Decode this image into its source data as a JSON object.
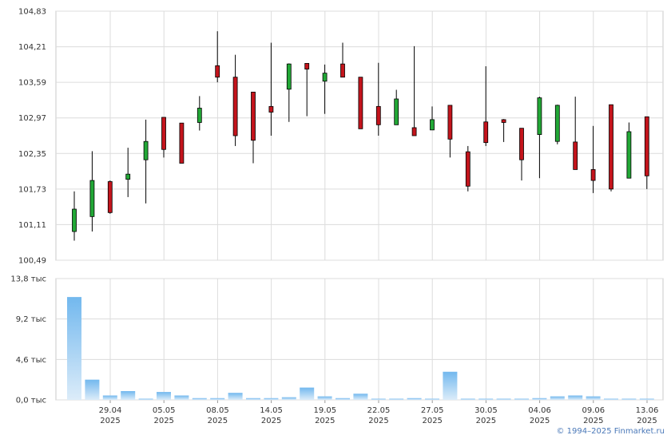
{
  "copyright": "© 1994–2025 Finmarket.ru",
  "colors": {
    "up": "#22a836",
    "down": "#c4141c",
    "volume_top": "#72b8ee",
    "volume_bottom": "#dcecf9",
    "grid": "#dcdcdc"
  },
  "chart_data": [
    {
      "type": "candlestick",
      "title": "",
      "ylim": [
        100.49,
        104.83
      ],
      "y_ticks": [
        "104,83",
        "104,21",
        "103,59",
        "102,97",
        "102,35",
        "101,73",
        "101,11",
        "100,49"
      ],
      "grid": true,
      "candles": [
        {
          "o": 100.99,
          "h": 101.69,
          "l": 100.83,
          "c": 101.38
        },
        {
          "o": 101.25,
          "h": 102.39,
          "l": 100.99,
          "c": 101.88
        },
        {
          "o": 101.86,
          "h": 101.88,
          "l": 101.3,
          "c": 101.32
        },
        {
          "o": 101.9,
          "h": 102.45,
          "l": 101.59,
          "c": 101.99
        },
        {
          "o": 102.24,
          "h": 102.94,
          "l": 101.48,
          "c": 102.56
        },
        {
          "o": 102.98,
          "h": 102.98,
          "l": 102.28,
          "c": 102.42
        },
        {
          "o": 102.88,
          "h": 102.88,
          "l": 102.18,
          "c": 102.18
        },
        {
          "o": 102.89,
          "h": 103.35,
          "l": 102.75,
          "c": 103.14
        },
        {
          "o": 103.88,
          "h": 104.48,
          "l": 103.59,
          "c": 103.68
        },
        {
          "o": 103.68,
          "h": 104.07,
          "l": 102.48,
          "c": 102.66
        },
        {
          "o": 103.42,
          "h": 103.42,
          "l": 102.18,
          "c": 102.58
        },
        {
          "o": 103.17,
          "h": 104.28,
          "l": 102.66,
          "c": 103.07
        },
        {
          "o": 103.47,
          "h": 103.92,
          "l": 102.9,
          "c": 103.91
        },
        {
          "o": 103.92,
          "h": 103.92,
          "l": 103.0,
          "c": 103.82
        },
        {
          "o": 103.61,
          "h": 103.9,
          "l": 103.04,
          "c": 103.75
        },
        {
          "o": 103.91,
          "h": 104.28,
          "l": 103.68,
          "c": 103.68
        },
        {
          "o": 103.68,
          "h": 103.68,
          "l": 102.78,
          "c": 102.78
        },
        {
          "o": 103.17,
          "h": 103.93,
          "l": 102.66,
          "c": 102.85
        },
        {
          "o": 102.85,
          "h": 103.46,
          "l": 102.85,
          "c": 103.3
        },
        {
          "o": 102.8,
          "h": 104.22,
          "l": 102.66,
          "c": 102.66
        },
        {
          "o": 102.76,
          "h": 103.17,
          "l": 102.76,
          "c": 102.94
        },
        {
          "o": 103.19,
          "h": 103.19,
          "l": 102.28,
          "c": 102.6
        },
        {
          "o": 102.38,
          "h": 102.48,
          "l": 101.69,
          "c": 101.78
        },
        {
          "o": 102.9,
          "h": 103.87,
          "l": 102.48,
          "c": 102.54
        },
        {
          "o": 102.94,
          "h": 102.95,
          "l": 102.55,
          "c": 102.89
        },
        {
          "o": 102.79,
          "h": 102.79,
          "l": 101.88,
          "c": 102.24
        },
        {
          "o": 102.68,
          "h": 103.34,
          "l": 101.92,
          "c": 103.32
        },
        {
          "o": 102.56,
          "h": 103.2,
          "l": 102.51,
          "c": 103.19
        },
        {
          "o": 102.55,
          "h": 103.34,
          "l": 102.07,
          "c": 102.07
        },
        {
          "o": 102.07,
          "h": 102.83,
          "l": 101.66,
          "c": 101.88
        },
        {
          "o": 103.2,
          "h": 103.2,
          "l": 101.69,
          "c": 101.73
        },
        {
          "o": 101.92,
          "h": 102.89,
          "l": 101.92,
          "c": 102.73
        },
        {
          "o": 102.99,
          "h": 102.99,
          "l": 101.73,
          "c": 101.96
        }
      ]
    },
    {
      "type": "bar",
      "title": "",
      "ylim": [
        0,
        13.8
      ],
      "y_ticks": [
        "13,8 тыс",
        "9,2 тыс",
        "4,6 тыс",
        "0,0 тыс"
      ],
      "grid": true,
      "values": [
        11.7,
        2.3,
        0.5,
        1.0,
        0.1,
        0.9,
        0.5,
        0.2,
        0.2,
        0.8,
        0.2,
        0.2,
        0.3,
        1.4,
        0.4,
        0.2,
        0.7,
        0.1,
        0.1,
        0.2,
        0.1,
        3.2,
        0.1,
        0.1,
        0.1,
        0.1,
        0.2,
        0.4,
        0.5,
        0.4,
        0.1,
        0.1,
        0.1
      ],
      "x_ticks": [
        {
          "day": "29.04",
          "year": "2025"
        },
        {
          "day": "05.05",
          "year": "2025"
        },
        {
          "day": "08.05",
          "year": "2025"
        },
        {
          "day": "14.05",
          "year": "2025"
        },
        {
          "day": "19.05",
          "year": "2025"
        },
        {
          "day": "22.05",
          "year": "2025"
        },
        {
          "day": "27.05",
          "year": "2025"
        },
        {
          "day": "30.05",
          "year": "2025"
        },
        {
          "day": "04.06",
          "year": "2025"
        },
        {
          "day": "09.06",
          "year": "2025"
        },
        {
          "day": "13.06",
          "year": "2025"
        }
      ]
    }
  ]
}
